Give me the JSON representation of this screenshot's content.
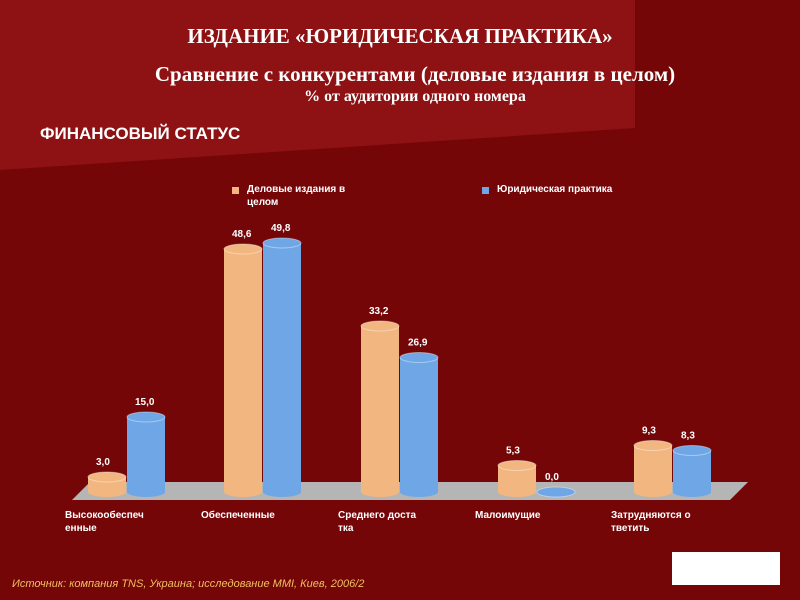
{
  "chart_data": {
    "type": "bar",
    "title": "ИЗДАНИЕ «ЮРИДИЧЕСКАЯ ПРАКТИКА»",
    "subtitle": "Сравнение с конкурентами (деловые издания в целом)",
    "unit_note": "% от аудитории одного номера",
    "section": "ФИНАНСОВЫЙ СТАТУС",
    "source": "Источник: компания TNS, Украина; исследование MMI, Киев, 2006/2",
    "categories": [
      "Высокообеспеченные",
      "Обеспеченные",
      "Среднего достатка",
      "Малоимущие",
      "Затрудняются ответить"
    ],
    "series": [
      {
        "name": "Деловые издания в целом",
        "color": "#f2b680",
        "values": [
          3.0,
          48.6,
          33.2,
          5.3,
          9.3
        ],
        "value_labels": [
          "3,0",
          "48,6",
          "33,2",
          "5,3",
          "9,3"
        ]
      },
      {
        "name": "Юридическая практика",
        "color": "#6fa6e6",
        "values": [
          15.0,
          49.8,
          26.9,
          0.0,
          8.3
        ],
        "value_labels": [
          "15,0",
          "49,8",
          "26,9",
          "0,0",
          "8,3"
        ]
      }
    ]
  }
}
